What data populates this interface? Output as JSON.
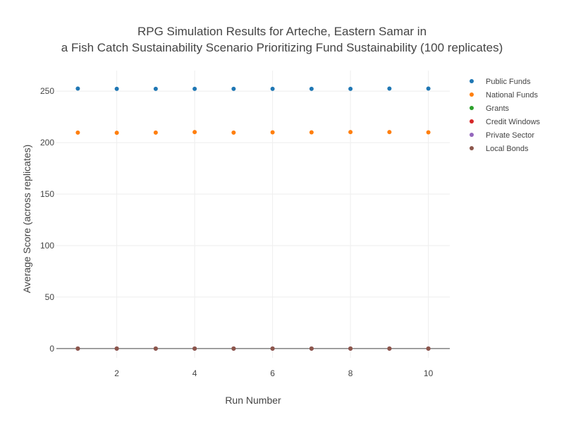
{
  "chart_data": {
    "type": "scatter",
    "title_lines": [
      "RPG Simulation Results for Arteche, Eastern Samar in",
      "a Fish Catch Sustainability Scenario Prioritizing Fund Sustainability (100 replicates)"
    ],
    "xlabel": "Run Number",
    "ylabel": "Average Score (across replicates)",
    "x": [
      1,
      2,
      3,
      4,
      5,
      6,
      7,
      8,
      9,
      10
    ],
    "xlim": [
      0.45,
      10.55
    ],
    "ylim": [
      -9,
      270
    ],
    "xticks": [
      2,
      4,
      6,
      8,
      10
    ],
    "yticks": [
      0,
      50,
      100,
      150,
      200,
      250
    ],
    "grid": true,
    "legend_position": "top-right",
    "series": [
      {
        "name": "Public Funds",
        "color": "#1f77b4",
        "values": [
          252.5,
          252.3,
          252.3,
          252.3,
          252.3,
          252.3,
          252.3,
          252.3,
          252.5,
          252.5
        ]
      },
      {
        "name": "National Funds",
        "color": "#ff7f0e",
        "values": [
          209.8,
          209.6,
          209.8,
          210.3,
          209.8,
          210.0,
          210.0,
          210.3,
          210.3,
          210.0
        ]
      },
      {
        "name": "Grants",
        "color": "#2ca02c",
        "values": [
          0,
          0,
          0,
          0,
          0,
          0,
          0,
          0,
          0,
          0
        ]
      },
      {
        "name": "Credit Windows",
        "color": "#d62728",
        "values": [
          0,
          0,
          0,
          0,
          0,
          0,
          0,
          0,
          0,
          0
        ]
      },
      {
        "name": "Private Sector",
        "color": "#9467bd",
        "values": [
          0,
          0,
          0,
          0,
          0,
          0,
          0,
          0,
          0,
          0
        ]
      },
      {
        "name": "Local Bonds",
        "color": "#8c564b",
        "values": [
          0,
          0,
          0,
          0,
          0,
          0,
          0,
          0,
          0,
          0
        ]
      }
    ]
  }
}
